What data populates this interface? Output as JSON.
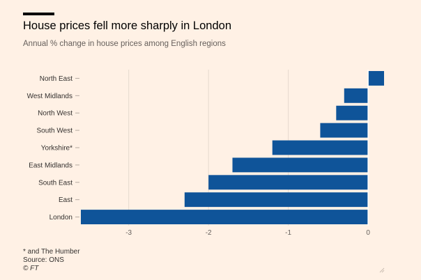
{
  "header": {
    "title": "House prices fell more sharply in London",
    "subtitle": "Annual % change in house prices among English regions"
  },
  "footer": {
    "note": "* and The Humber",
    "source": "Source: ONS",
    "credit": "© FT"
  },
  "colors": {
    "background": "#fff1e5",
    "bar": "#0f5499",
    "grid": "#e6d9ce",
    "text": "#33302e"
  },
  "chart_data": {
    "type": "bar",
    "orientation": "horizontal",
    "title": "House prices fell more sharply in London",
    "subtitle": "Annual % change in house prices among English regions",
    "xlabel": "",
    "ylabel": "",
    "categories": [
      "North East",
      "West Midlands",
      "North West",
      "South West",
      "Yorkshire*",
      "East Midlands",
      "South East",
      "East",
      "London"
    ],
    "values": [
      0.2,
      -0.3,
      -0.4,
      -0.6,
      -1.2,
      -1.7,
      -2.0,
      -2.3,
      -3.6
    ],
    "xlim": [
      -3.6,
      0.2
    ],
    "xticks": [
      -3,
      -2,
      -1,
      0
    ],
    "xtick_labels": [
      "-3",
      "-2",
      "-1",
      "0"
    ],
    "grid": "vertical",
    "legend": "none"
  }
}
